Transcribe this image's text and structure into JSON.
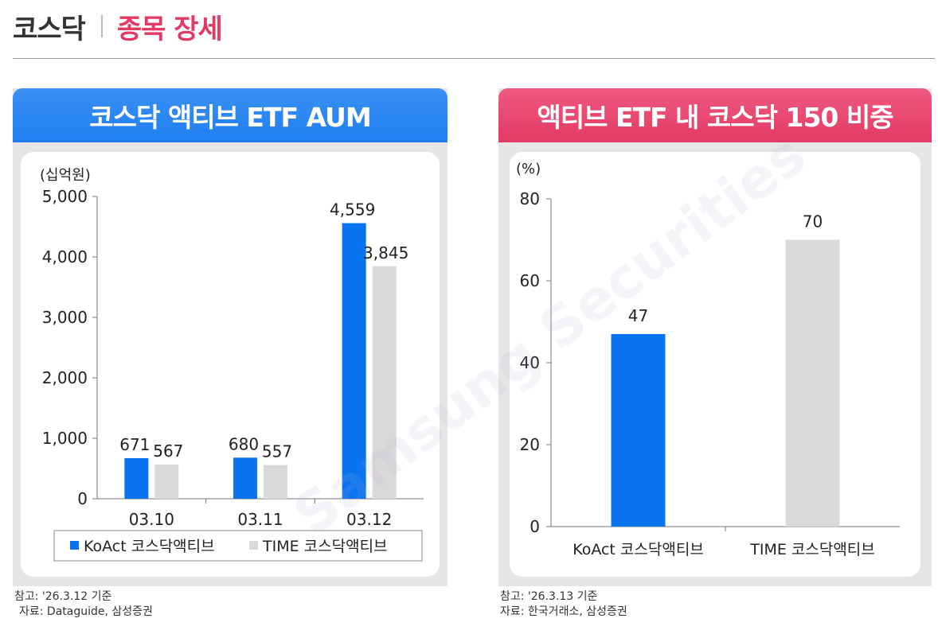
{
  "header": {
    "section": "코스닥",
    "title": "종목 장세"
  },
  "colors": {
    "blue": "#0a74f0",
    "gray": "#d9d9d9",
    "pink": "#e8396a",
    "blueHeader": "#2b86f0"
  },
  "watermark": "Samsung Securities",
  "left": {
    "note_ref": "참고: '26.3.12 기준",
    "note_src": "자료: Dataguide, 삼성증권"
  },
  "right": {
    "note_ref": "참고: '26.3.13 기준",
    "note_src": "자료: 한국거래소, 삼성증권"
  },
  "chart_data": [
    {
      "type": "bar",
      "title": "코스닥 액티브 ETF AUM",
      "unit": "(십억원)",
      "categories": [
        "03.10",
        "03.11",
        "03.12"
      ],
      "series": [
        {
          "name": "KoAct 코스닥액티브",
          "values": [
            671,
            680,
            4559
          ],
          "labels": [
            "671",
            "680",
            "4,559"
          ],
          "color": "#0a74f0"
        },
        {
          "name": "TIME 코스닥액티브",
          "values": [
            567,
            557,
            3845
          ],
          "labels": [
            "567",
            "557",
            "3,845"
          ],
          "color": "#d9d9d9"
        }
      ],
      "ylim": [
        0,
        5000
      ],
      "yticks": [
        0,
        1000,
        2000,
        3000,
        4000,
        5000
      ],
      "ytick_labels": [
        "0",
        "1,000",
        "2,000",
        "3,000",
        "4,000",
        "5,000"
      ],
      "legend": "bottom"
    },
    {
      "type": "bar",
      "title": "액티브 ETF 내 코스닥 150 비중",
      "unit": "(%)",
      "categories": [
        "KoAct 코스닥액티브",
        "TIME 코스닥액티브"
      ],
      "values": [
        47,
        70
      ],
      "labels": [
        "47",
        "70"
      ],
      "colors": [
        "#0a74f0",
        "#d9d9d9"
      ],
      "ylim": [
        0,
        80
      ],
      "yticks": [
        0,
        20,
        40,
        60,
        80
      ],
      "ytick_labels": [
        "0",
        "20",
        "40",
        "60",
        "80"
      ]
    }
  ]
}
